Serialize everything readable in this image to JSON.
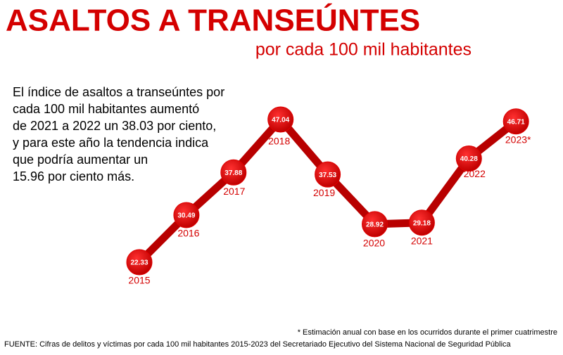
{
  "chart_data": {
    "type": "line",
    "title": "ASALTOS A TRANSEÚNTES",
    "subtitle": "por cada 100 mil habitantes",
    "annotation": [
      "El índice de asaltos a transeúntes por",
      "cada 100 mil habitantes aumentó",
      "de 2021 a 2022 un 38.03 por ciento,",
      "y para este año la tendencia indica",
      "que podría aumentar un",
      "15.96 por ciento más."
    ],
    "footnote": "* Estimación anual con base en los ocurridos durante el primer cuatrimestre",
    "source": "FUENTE: Cifras de delitos y víctimas por cada 100 mil habitantes 2015-2023 del Secretariado Ejecutivo del Sistema Nacional de Seguridad Pública",
    "categories": [
      "2015",
      "2016",
      "2017",
      "2018",
      "2019",
      "2020",
      "2021",
      "2022",
      "2023*"
    ],
    "values": [
      22.33,
      30.49,
      37.88,
      47.04,
      37.53,
      28.92,
      29.18,
      40.28,
      46.71
    ],
    "line_color": "#b80000",
    "marker_color": "#e00000"
  }
}
